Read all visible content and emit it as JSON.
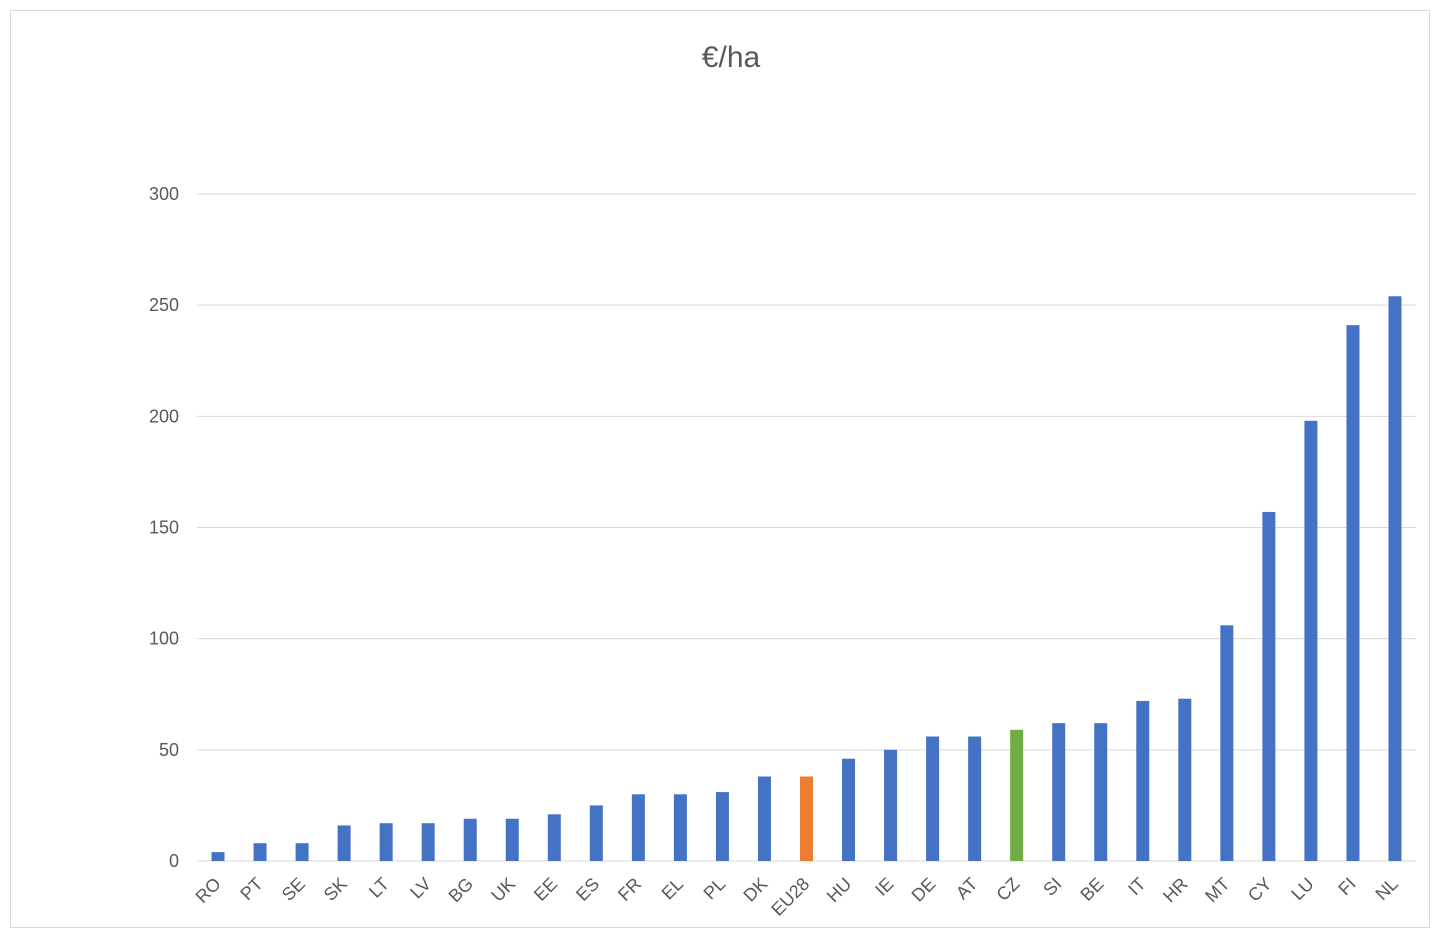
{
  "chart_data": {
    "type": "bar",
    "title": "€/ha",
    "xlabel": "",
    "ylabel": "",
    "ylim": [
      0,
      300
    ],
    "yticks": [
      0,
      50,
      100,
      150,
      200,
      250,
      300
    ],
    "grid": true,
    "legend": "none",
    "categories": [
      "RO",
      "PT",
      "SE",
      "SK",
      "LT",
      "LV",
      "BG",
      "UK",
      "EE",
      "ES",
      "FR",
      "EL",
      "PL",
      "DK",
      "EU28",
      "HU",
      "IE",
      "DE",
      "AT",
      "CZ",
      "SI",
      "BE",
      "IT",
      "HR",
      "MT",
      "CY",
      "LU",
      "FI",
      "NL"
    ],
    "values": [
      4,
      8,
      8,
      16,
      17,
      17,
      19,
      19,
      21,
      25,
      30,
      30,
      31,
      38,
      38,
      46,
      50,
      56,
      56,
      59,
      62,
      62,
      72,
      73,
      106,
      157,
      198,
      241,
      254
    ],
    "colors": {
      "default": "#4472c4",
      "EU28": "#ed7d31",
      "CZ": "#70ad47"
    }
  }
}
